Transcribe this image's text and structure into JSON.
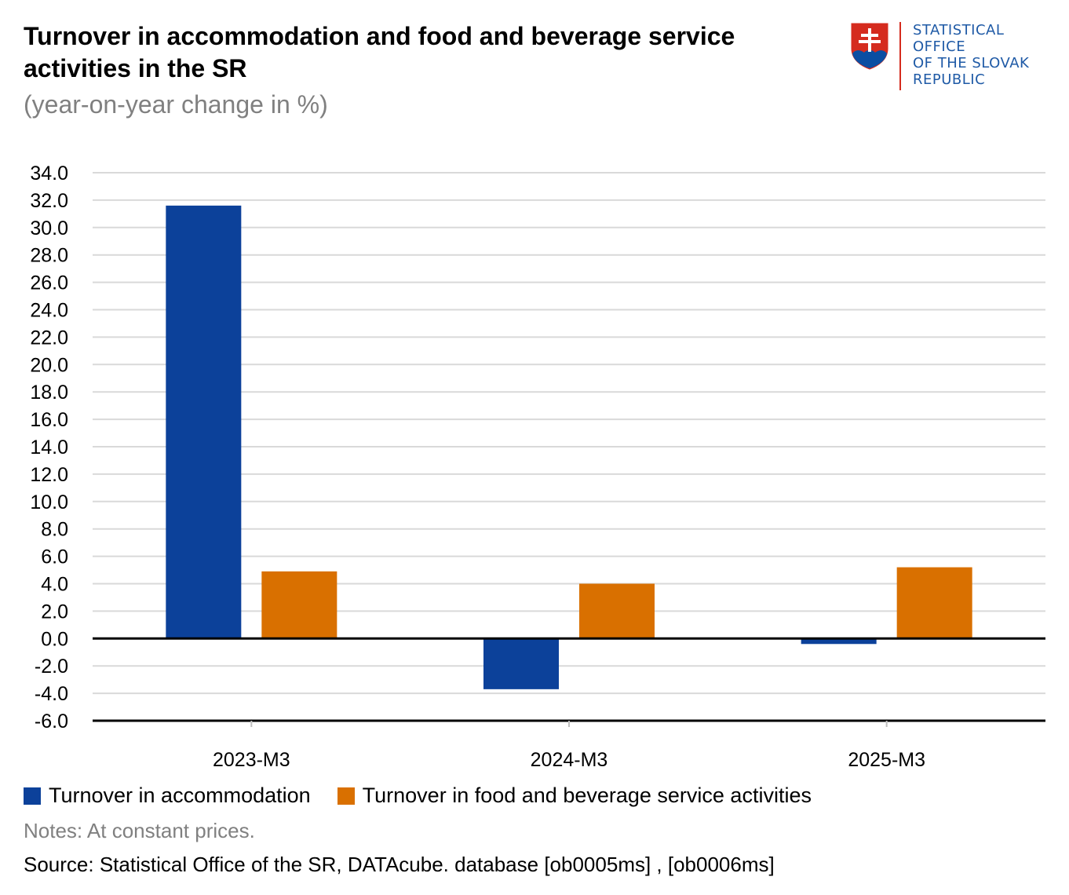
{
  "header": {
    "title": "Turnover in accommodation and food and beverage service activities in the SR",
    "subtitle": "(year-on-year change in %)"
  },
  "logo": {
    "lines": [
      "STATISTICAL",
      "OFFICE",
      "OF THE SLOVAK",
      "REPUBLIC"
    ],
    "colors": {
      "text": "#1f5aa6",
      "shield_red": "#d52b1e",
      "shield_blue": "#0b4ea2"
    }
  },
  "chart_data": {
    "type": "bar",
    "categories": [
      "2023-M3",
      "2024-M3",
      "2025-M3"
    ],
    "series": [
      {
        "name": "Turnover in accommodation",
        "color": "#0c419a",
        "values": [
          31.6,
          -3.7,
          -0.4
        ]
      },
      {
        "name": "Turnover in food and beverage service activities",
        "color": "#d97000",
        "values": [
          4.9,
          4.0,
          5.2
        ]
      }
    ],
    "ylim": [
      -6.0,
      34.0
    ],
    "yticks": [
      "34.0",
      "32.0",
      "30.0",
      "28.0",
      "26.0",
      "24.0",
      "22.0",
      "20.0",
      "18.0",
      "16.0",
      "14.0",
      "12.0",
      "10.0",
      "8.0",
      "6.0",
      "4.0",
      "2.0",
      "0.0",
      "-2.0",
      "-4.0",
      "-6.0"
    ],
    "grid": true,
    "legend_position": "bottom-left"
  },
  "footer": {
    "notes": "Notes: At constant prices.",
    "source": "Source: Statistical Office of the SR, DATAcube. database [ob0005ms] , [ob0006ms]"
  }
}
